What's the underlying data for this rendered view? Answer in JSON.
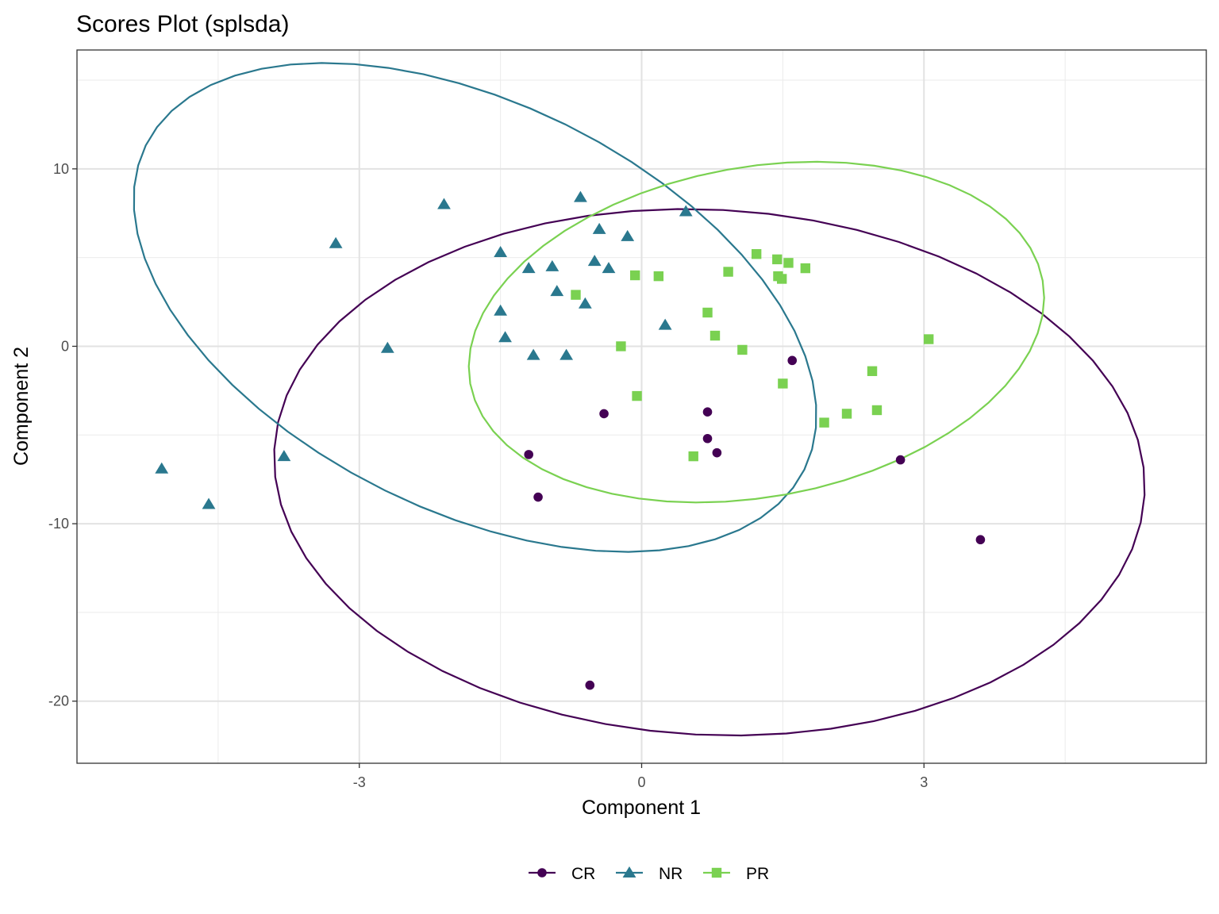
{
  "chart_data": {
    "type": "scatter",
    "title": "Scores Plot (splsda)",
    "xlabel": "Component 1",
    "ylabel": "Component 2",
    "xlim": [
      -6,
      6
    ],
    "ylim": [
      -23.5,
      16.7
    ],
    "x_ticks": [
      -3,
      0,
      3
    ],
    "y_ticks": [
      -20,
      -10,
      0,
      10
    ],
    "grid": true,
    "legend_position": "bottom",
    "series": [
      {
        "name": "CR",
        "marker": "circle",
        "color": "#440154",
        "points": [
          [
            -1.2,
            -6.1
          ],
          [
            -1.1,
            -8.5
          ],
          [
            -0.4,
            -3.8
          ],
          [
            -0.55,
            -19.1
          ],
          [
            0.7,
            -3.7
          ],
          [
            0.7,
            -5.2
          ],
          [
            0.8,
            -6.0
          ],
          [
            1.6,
            -0.8
          ],
          [
            2.75,
            -6.4
          ],
          [
            3.6,
            -10.9
          ]
        ],
        "ellipse": {
          "cx": 0.72,
          "cy": -7.1,
          "a": 4.63,
          "b": 14.8,
          "rotation_deg": 3.0
        }
      },
      {
        "name": "NR",
        "marker": "triangle",
        "color": "#2A788E",
        "points": [
          [
            -5.1,
            -6.9
          ],
          [
            -4.6,
            -8.9
          ],
          [
            -3.8,
            -6.2
          ],
          [
            -3.25,
            5.8
          ],
          [
            -2.7,
            -0.1
          ],
          [
            -2.1,
            8.0
          ],
          [
            -1.5,
            5.3
          ],
          [
            -1.5,
            2.0
          ],
          [
            -1.45,
            0.5
          ],
          [
            -1.2,
            4.4
          ],
          [
            -1.15,
            -0.5
          ],
          [
            -0.95,
            4.5
          ],
          [
            -0.9,
            3.1
          ],
          [
            -0.8,
            -0.5
          ],
          [
            -0.65,
            8.4
          ],
          [
            -0.6,
            2.4
          ],
          [
            -0.5,
            4.8
          ],
          [
            -0.45,
            6.6
          ],
          [
            -0.35,
            4.4
          ],
          [
            -0.15,
            6.2
          ],
          [
            0.25,
            1.2
          ],
          [
            0.47,
            7.6
          ]
        ],
        "ellipse": {
          "cx": -1.77,
          "cy": 2.19,
          "a": 3.9,
          "b": 11.5,
          "rotation_deg": 26.2
        }
      },
      {
        "name": "PR",
        "marker": "square",
        "color": "#7AD151",
        "points": [
          [
            -0.7,
            2.9
          ],
          [
            -0.22,
            0.0
          ],
          [
            -0.07,
            4.0
          ],
          [
            -0.05,
            -2.8
          ],
          [
            0.18,
            3.95
          ],
          [
            0.55,
            -6.2
          ],
          [
            0.7,
            1.9
          ],
          [
            0.78,
            0.6
          ],
          [
            0.92,
            4.2
          ],
          [
            1.07,
            -0.2
          ],
          [
            1.22,
            5.2
          ],
          [
            1.44,
            4.9
          ],
          [
            1.45,
            3.95
          ],
          [
            1.49,
            3.8
          ],
          [
            1.5,
            -2.1
          ],
          [
            1.56,
            4.7
          ],
          [
            1.74,
            4.4
          ],
          [
            1.94,
            -4.3
          ],
          [
            2.18,
            -3.8
          ],
          [
            2.45,
            -1.4
          ],
          [
            2.5,
            -3.6
          ],
          [
            3.05,
            0.4
          ]
        ],
        "ellipse": {
          "cx": 1.22,
          "cy": 0.8,
          "a": 3.09,
          "b": 9.3,
          "rotation_deg": -10.2
        }
      }
    ]
  }
}
